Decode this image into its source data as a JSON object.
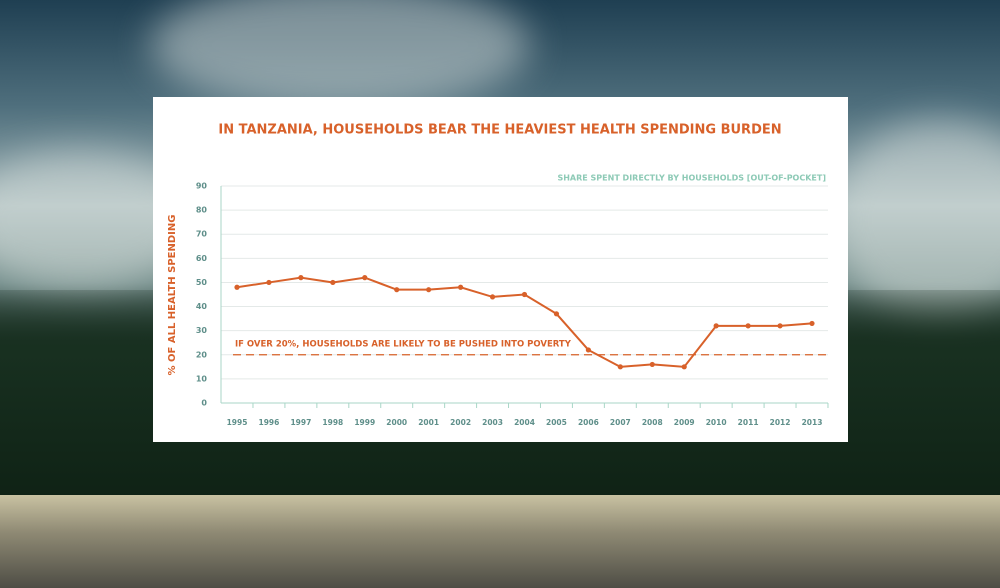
{
  "chart_data": {
    "type": "line",
    "title": "IN TANZANIA, HOUSEHOLDS BEAR THE HEAVIEST HEALTH SPENDING BURDEN",
    "y_label": "% OF ALL HEALTH SPENDING",
    "categories": [
      "1995",
      "1996",
      "1997",
      "1998",
      "1999",
      "2000",
      "2001",
      "2002",
      "2003",
      "2004",
      "2005",
      "2006",
      "2007",
      "2008",
      "2009",
      "2010",
      "2011",
      "2012",
      "2013"
    ],
    "series": [
      {
        "name": "SHARE SPENT DIRECTLY BY HOUSEHOLDS [OUT-OF-POCKET]",
        "color": "#d8612a",
        "values": [
          48,
          50,
          52,
          50,
          52,
          47,
          47,
          48,
          44,
          45,
          37,
          22,
          15,
          16,
          15,
          32,
          32,
          32,
          33
        ]
      }
    ],
    "threshold": {
      "value": 20,
      "label": "IF OVER 20%, HOUSEHOLDS ARE LIKELY TO BE PUSHED INTO POVERTY"
    },
    "ylim": [
      0,
      90
    ],
    "yticks": [
      0,
      10,
      20,
      30,
      40,
      50,
      60,
      70,
      80,
      90
    ],
    "grid": true
  }
}
